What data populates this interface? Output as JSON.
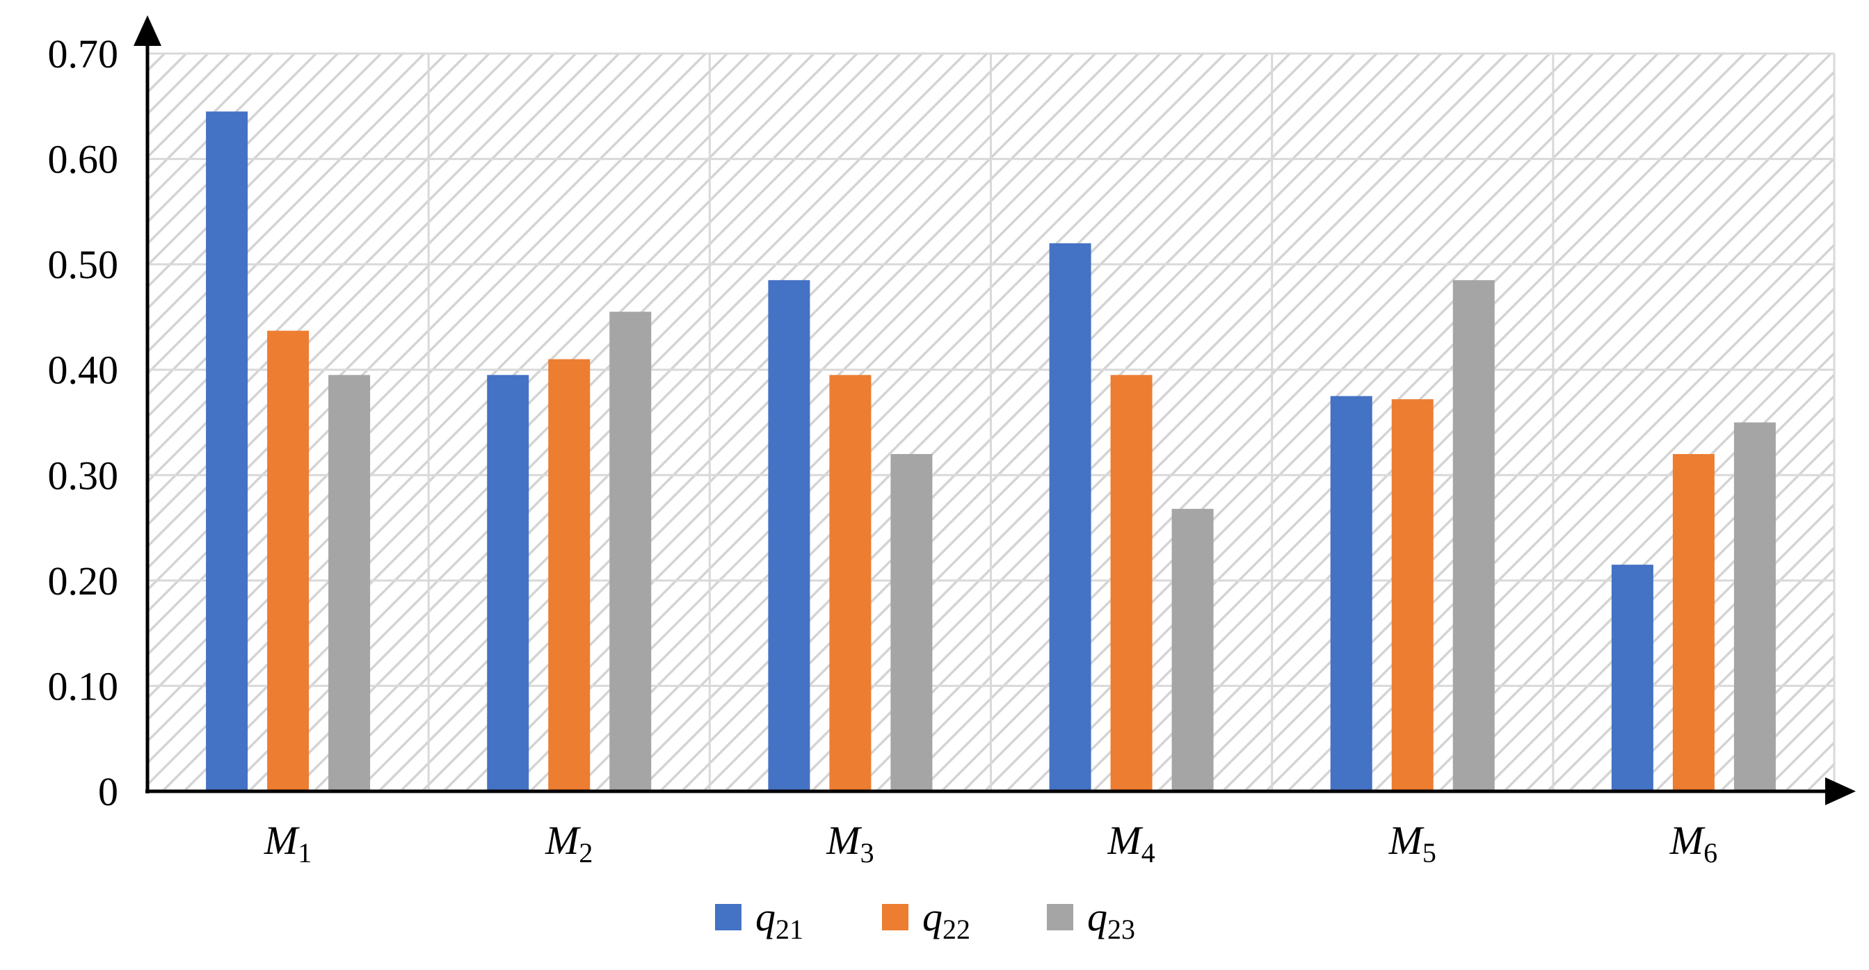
{
  "chart_data": {
    "type": "bar",
    "title": "",
    "xlabel": "",
    "ylabel": "",
    "categories": [
      {
        "base": "M",
        "sub": "1"
      },
      {
        "base": "M",
        "sub": "2"
      },
      {
        "base": "M",
        "sub": "3"
      },
      {
        "base": "M",
        "sub": "4"
      },
      {
        "base": "M",
        "sub": "5"
      },
      {
        "base": "M",
        "sub": "6"
      }
    ],
    "series": [
      {
        "name": {
          "base": "q",
          "sub": "21"
        },
        "color": "#4472C4",
        "values": [
          0.645,
          0.395,
          0.485,
          0.52,
          0.375,
          0.215
        ]
      },
      {
        "name": {
          "base": "q",
          "sub": "22"
        },
        "color": "#ED7D31",
        "values": [
          0.437,
          0.41,
          0.395,
          0.395,
          0.372,
          0.32
        ]
      },
      {
        "name": {
          "base": "q",
          "sub": "23"
        },
        "color": "#A5A5A5",
        "values": [
          0.395,
          0.455,
          0.32,
          0.268,
          0.485,
          0.35
        ]
      }
    ],
    "y_ticks": [
      "0",
      "0.10",
      "0.20",
      "0.30",
      "0.40",
      "0.50",
      "0.60",
      "0.70"
    ],
    "ylim": [
      0,
      0.7
    ],
    "grid": true,
    "plot_background": "diagonal-hatch",
    "legend_position": "bottom-center"
  }
}
